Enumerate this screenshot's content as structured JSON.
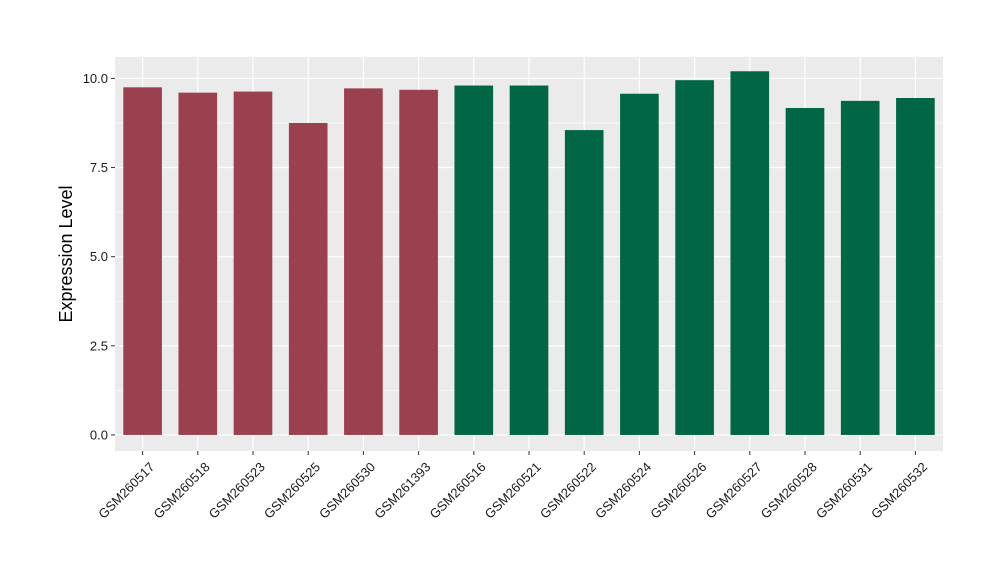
{
  "chart_data": {
    "type": "bar",
    "ylabel": "Expression Level",
    "xlabel": "",
    "ylim": [
      -0.45,
      10.6
    ],
    "yticks": [
      "0.0",
      "2.5",
      "5.0",
      "7.5",
      "10.0"
    ],
    "grid": true,
    "categories": [
      "GSM260517",
      "GSM260518",
      "GSM260523",
      "GSM260525",
      "GSM260530",
      "GSM261393",
      "GSM260516",
      "GSM260521",
      "GSM260522",
      "GSM260524",
      "GSM260526",
      "GSM260527",
      "GSM260528",
      "GSM260531",
      "GSM260532"
    ],
    "values": [
      9.75,
      9.6,
      9.63,
      8.75,
      9.72,
      9.68,
      9.8,
      9.8,
      8.55,
      9.57,
      9.95,
      10.2,
      9.17,
      9.37,
      9.45
    ],
    "groups": [
      0,
      0,
      0,
      0,
      0,
      0,
      1,
      1,
      1,
      1,
      1,
      1,
      1,
      1,
      1
    ],
    "group_colors": [
      "#9b404f",
      "#006646"
    ],
    "panel_background": "#ebebeb",
    "grid_color": "#ffffff"
  }
}
